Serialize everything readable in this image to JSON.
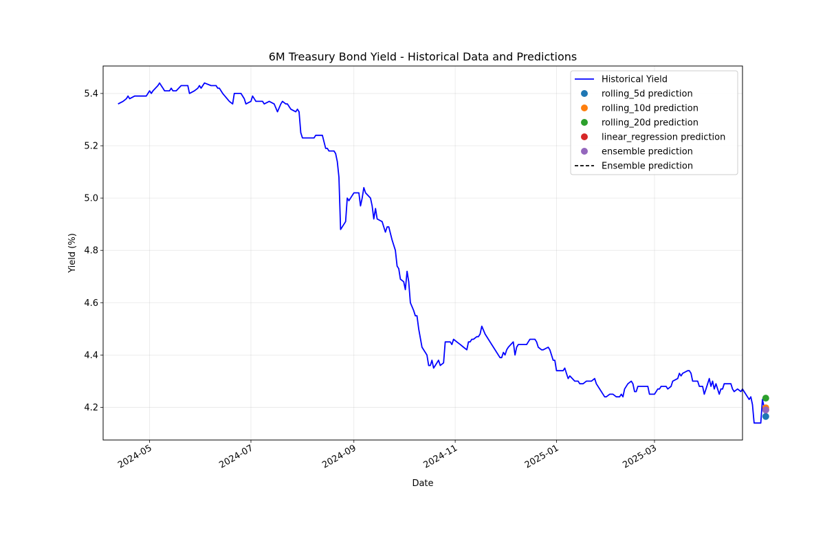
{
  "chart_data": {
    "type": "line",
    "title": "6M Treasury Bond Yield - Historical Data and Predictions",
    "xlabel": "Date",
    "ylabel": "Yield (%)",
    "x_ticks": [
      "2024-05",
      "2024-07",
      "2024-09",
      "2024-11",
      "2025-01",
      "2025-03"
    ],
    "y_ticks": [
      "4.2",
      "4.4",
      "4.6",
      "4.8",
      "5.0",
      "5.2",
      "5.4"
    ],
    "xlim": [
      "2024-04-03",
      "2025-04-23"
    ],
    "ylim": [
      4.075,
      5.505
    ],
    "grid": true,
    "legend_position": "upper right",
    "series": [
      {
        "name": "Historical Yield",
        "color": "#0000ff",
        "points": [
          [
            "2024-04-12",
            5.36
          ],
          [
            "2024-04-15",
            5.37
          ],
          [
            "2024-04-17",
            5.38
          ],
          [
            "2024-04-18",
            5.39
          ],
          [
            "2024-04-19",
            5.38
          ],
          [
            "2024-04-22",
            5.39
          ],
          [
            "2024-04-25",
            5.39
          ],
          [
            "2024-04-29",
            5.39
          ],
          [
            "2024-04-30",
            5.4
          ],
          [
            "2024-05-01",
            5.41
          ],
          [
            "2024-05-02",
            5.4
          ],
          [
            "2024-05-03",
            5.41
          ],
          [
            "2024-05-06",
            5.43
          ],
          [
            "2024-05-07",
            5.44
          ],
          [
            "2024-05-08",
            5.43
          ],
          [
            "2024-05-09",
            5.42
          ],
          [
            "2024-05-10",
            5.41
          ],
          [
            "2024-05-13",
            5.41
          ],
          [
            "2024-05-14",
            5.42
          ],
          [
            "2024-05-15",
            5.41
          ],
          [
            "2024-05-16",
            5.41
          ],
          [
            "2024-05-17",
            5.41
          ],
          [
            "2024-05-20",
            5.43
          ],
          [
            "2024-05-24",
            5.43
          ],
          [
            "2024-05-25",
            5.4
          ],
          [
            "2024-05-28",
            5.41
          ],
          [
            "2024-05-30",
            5.42
          ],
          [
            "2024-05-31",
            5.43
          ],
          [
            "2024-06-01",
            5.42
          ],
          [
            "2024-06-03",
            5.44
          ],
          [
            "2024-06-07",
            5.43
          ],
          [
            "2024-06-10",
            5.43
          ],
          [
            "2024-06-11",
            5.42
          ],
          [
            "2024-06-12",
            5.42
          ],
          [
            "2024-06-14",
            5.4
          ],
          [
            "2024-06-18",
            5.37
          ],
          [
            "2024-06-20",
            5.36
          ],
          [
            "2024-06-21",
            5.4
          ],
          [
            "2024-06-25",
            5.4
          ],
          [
            "2024-06-27",
            5.38
          ],
          [
            "2024-06-28",
            5.36
          ],
          [
            "2024-07-01",
            5.37
          ],
          [
            "2024-07-02",
            5.39
          ],
          [
            "2024-07-04",
            5.37
          ],
          [
            "2024-07-08",
            5.37
          ],
          [
            "2024-07-09",
            5.36
          ],
          [
            "2024-07-12",
            5.37
          ],
          [
            "2024-07-15",
            5.36
          ],
          [
            "2024-07-17",
            5.33
          ],
          [
            "2024-07-19",
            5.36
          ],
          [
            "2024-07-20",
            5.37
          ],
          [
            "2024-07-22",
            5.36
          ],
          [
            "2024-07-23",
            5.36
          ],
          [
            "2024-07-25",
            5.34
          ],
          [
            "2024-07-28",
            5.33
          ],
          [
            "2024-07-29",
            5.34
          ],
          [
            "2024-07-30",
            5.33
          ],
          [
            "2024-07-31",
            5.25
          ],
          [
            "2024-08-01",
            5.23
          ],
          [
            "2024-08-02",
            5.23
          ],
          [
            "2024-08-05",
            5.23
          ],
          [
            "2024-08-08",
            5.23
          ],
          [
            "2024-08-09",
            5.24
          ],
          [
            "2024-08-13",
            5.24
          ],
          [
            "2024-08-15",
            5.19
          ],
          [
            "2024-08-16",
            5.19
          ],
          [
            "2024-08-17",
            5.18
          ],
          [
            "2024-08-20",
            5.18
          ],
          [
            "2024-08-21",
            5.17
          ],
          [
            "2024-08-22",
            5.14
          ],
          [
            "2024-08-23",
            5.08
          ],
          [
            "2024-08-24",
            4.88
          ],
          [
            "2024-08-27",
            4.91
          ],
          [
            "2024-08-28",
            5.0
          ],
          [
            "2024-08-29",
            4.99
          ],
          [
            "2024-09-01",
            5.02
          ],
          [
            "2024-09-04",
            5.02
          ],
          [
            "2024-09-05",
            4.97
          ],
          [
            "2024-09-06",
            5.0
          ],
          [
            "2024-09-07",
            5.04
          ],
          [
            "2024-09-08",
            5.02
          ],
          [
            "2024-09-11",
            5.0
          ],
          [
            "2024-09-12",
            4.97
          ],
          [
            "2024-09-13",
            4.92
          ],
          [
            "2024-09-14",
            4.96
          ],
          [
            "2024-09-15",
            4.92
          ],
          [
            "2024-09-18",
            4.91
          ],
          [
            "2024-09-20",
            4.87
          ],
          [
            "2024-09-21",
            4.89
          ],
          [
            "2024-09-22",
            4.89
          ],
          [
            "2024-09-24",
            4.84
          ],
          [
            "2024-09-26",
            4.8
          ],
          [
            "2024-09-27",
            4.74
          ],
          [
            "2024-09-28",
            4.73
          ],
          [
            "2024-09-29",
            4.69
          ],
          [
            "2024-10-01",
            4.68
          ],
          [
            "2024-10-02",
            4.65
          ],
          [
            "2024-10-03",
            4.72
          ],
          [
            "2024-10-04",
            4.68
          ],
          [
            "2024-10-05",
            4.6
          ],
          [
            "2024-10-07",
            4.57
          ],
          [
            "2024-10-08",
            4.55
          ],
          [
            "2024-10-09",
            4.55
          ],
          [
            "2024-10-10",
            4.5
          ],
          [
            "2024-10-12",
            4.43
          ],
          [
            "2024-10-15",
            4.4
          ],
          [
            "2024-10-16",
            4.36
          ],
          [
            "2024-10-17",
            4.36
          ],
          [
            "2024-10-18",
            4.38
          ],
          [
            "2024-10-19",
            4.35
          ],
          [
            "2024-10-22",
            4.38
          ],
          [
            "2024-10-23",
            4.36
          ],
          [
            "2024-10-25",
            4.37
          ],
          [
            "2024-10-26",
            4.45
          ],
          [
            "2024-10-27",
            4.45
          ],
          [
            "2024-10-29",
            4.45
          ],
          [
            "2024-10-30",
            4.44
          ],
          [
            "2024-10-31",
            4.46
          ],
          [
            "2024-11-02",
            4.45
          ],
          [
            "2024-11-04",
            4.44
          ],
          [
            "2024-11-06",
            4.43
          ],
          [
            "2024-11-08",
            4.42
          ],
          [
            "2024-11-09",
            4.45
          ],
          [
            "2024-11-10",
            4.45
          ],
          [
            "2024-11-11",
            4.46
          ],
          [
            "2024-11-12",
            4.46
          ],
          [
            "2024-11-14",
            4.47
          ],
          [
            "2024-11-15",
            4.47
          ],
          [
            "2024-11-16",
            4.48
          ],
          [
            "2024-11-17",
            4.51
          ],
          [
            "2024-11-19",
            4.48
          ],
          [
            "2024-11-21",
            4.46
          ],
          [
            "2024-11-23",
            4.44
          ],
          [
            "2024-11-26",
            4.41
          ],
          [
            "2024-11-28",
            4.39
          ],
          [
            "2024-11-29",
            4.39
          ],
          [
            "2024-11-30",
            4.41
          ],
          [
            "2024-12-01",
            4.4
          ],
          [
            "2024-12-02",
            4.42
          ],
          [
            "2024-12-03",
            4.43
          ],
          [
            "2024-12-06",
            4.45
          ],
          [
            "2024-12-07",
            4.4
          ],
          [
            "2024-12-08",
            4.43
          ],
          [
            "2024-12-09",
            4.44
          ],
          [
            "2024-12-14",
            4.44
          ],
          [
            "2024-12-15",
            4.45
          ],
          [
            "2024-12-16",
            4.46
          ],
          [
            "2024-12-19",
            4.46
          ],
          [
            "2024-12-20",
            4.45
          ],
          [
            "2024-12-21",
            4.43
          ],
          [
            "2024-12-23",
            4.42
          ],
          [
            "2024-12-24",
            4.42
          ],
          [
            "2024-12-27",
            4.43
          ],
          [
            "2024-12-28",
            4.42
          ],
          [
            "2024-12-29",
            4.4
          ],
          [
            "2024-12-30",
            4.38
          ],
          [
            "2024-12-31",
            4.38
          ],
          [
            "2025-01-01",
            4.34
          ],
          [
            "2025-01-05",
            4.34
          ],
          [
            "2025-01-06",
            4.35
          ],
          [
            "2025-01-07",
            4.33
          ],
          [
            "2025-01-08",
            4.31
          ],
          [
            "2025-01-09",
            4.32
          ],
          [
            "2025-01-12",
            4.3
          ],
          [
            "2025-01-14",
            4.3
          ],
          [
            "2025-01-15",
            4.29
          ],
          [
            "2025-01-17",
            4.29
          ],
          [
            "2025-01-19",
            4.3
          ],
          [
            "2025-01-22",
            4.3
          ],
          [
            "2025-01-24",
            4.31
          ],
          [
            "2025-01-25",
            4.29
          ],
          [
            "2025-01-28",
            4.26
          ],
          [
            "2025-01-30",
            4.24
          ],
          [
            "2025-01-31",
            4.24
          ],
          [
            "2025-02-02",
            4.25
          ],
          [
            "2025-02-04",
            4.25
          ],
          [
            "2025-02-06",
            4.24
          ],
          [
            "2025-02-08",
            4.24
          ],
          [
            "2025-02-09",
            4.25
          ],
          [
            "2025-02-10",
            4.24
          ],
          [
            "2025-02-11",
            4.27
          ],
          [
            "2025-02-13",
            4.29
          ],
          [
            "2025-02-15",
            4.3
          ],
          [
            "2025-02-16",
            4.29
          ],
          [
            "2025-02-17",
            4.26
          ],
          [
            "2025-02-18",
            4.26
          ],
          [
            "2025-02-19",
            4.28
          ],
          [
            "2025-02-21",
            4.28
          ],
          [
            "2025-02-25",
            4.28
          ],
          [
            "2025-02-26",
            4.25
          ],
          [
            "2025-03-01",
            4.25
          ],
          [
            "2025-03-03",
            4.27
          ],
          [
            "2025-03-04",
            4.27
          ],
          [
            "2025-03-05",
            4.28
          ],
          [
            "2025-03-08",
            4.28
          ],
          [
            "2025-03-09",
            4.27
          ],
          [
            "2025-03-11",
            4.28
          ],
          [
            "2025-03-12",
            4.3
          ],
          [
            "2025-03-15",
            4.31
          ],
          [
            "2025-03-16",
            4.33
          ],
          [
            "2025-03-17",
            4.32
          ],
          [
            "2025-03-18",
            4.33
          ],
          [
            "2025-03-21",
            4.34
          ],
          [
            "2025-03-22",
            4.34
          ],
          [
            "2025-03-23",
            4.33
          ],
          [
            "2025-03-24",
            4.3
          ],
          [
            "2025-03-27",
            4.3
          ],
          [
            "2025-03-28",
            4.28
          ],
          [
            "2025-03-30",
            4.28
          ],
          [
            "2025-03-31",
            4.25
          ],
          [
            "2025-04-01",
            4.27
          ],
          [
            "2025-04-02",
            4.29
          ],
          [
            "2025-04-03",
            4.31
          ],
          [
            "2025-04-04",
            4.28
          ],
          [
            "2025-04-05",
            4.3
          ],
          [
            "2025-04-06",
            4.27
          ],
          [
            "2025-04-07",
            4.29
          ],
          [
            "2025-04-08",
            4.27
          ],
          [
            "2025-04-09",
            4.25
          ],
          [
            "2025-04-10",
            4.27
          ],
          [
            "2025-04-11",
            4.27
          ],
          [
            "2025-04-12",
            4.29
          ],
          [
            "2025-04-16",
            4.29
          ],
          [
            "2025-04-17",
            4.27
          ],
          [
            "2025-04-18",
            4.26
          ],
          [
            "2025-04-20",
            4.27
          ],
          [
            "2025-04-22",
            4.26
          ],
          [
            "2025-04-23",
            4.27
          ],
          [
            "2025-04-25",
            4.25
          ],
          [
            "2025-04-26",
            4.24
          ],
          [
            "2025-04-27",
            4.23
          ],
          [
            "2025-04-28",
            4.24
          ],
          [
            "2025-04-29",
            4.21
          ],
          [
            "2025-04-30",
            4.14
          ],
          [
            "2025-05-04",
            4.14
          ],
          [
            "2025-05-05",
            4.23
          ],
          [
            "2025-05-06",
            4.2
          ]
        ]
      }
    ],
    "predictions": [
      {
        "name": "rolling_5d prediction",
        "color": "#1f77b4",
        "date": "2025-05-07",
        "value": 4.165
      },
      {
        "name": "rolling_10d prediction",
        "color": "#ff7f0e",
        "date": "2025-05-07",
        "value": 4.198
      },
      {
        "name": "rolling_20d prediction",
        "color": "#2ca02c",
        "date": "2025-05-07",
        "value": 4.235
      },
      {
        "name": "linear_regression prediction",
        "color": "#d62728",
        "date": "2025-05-07",
        "value": 4.19
      },
      {
        "name": "ensemble prediction",
        "color": "#9467bd",
        "date": "2025-05-07",
        "value": 4.19
      }
    ],
    "ensemble_line": {
      "name": "Ensemble prediction",
      "color": "#000000",
      "style": "dashed",
      "points": [
        [
          "2025-05-06",
          4.2
        ],
        [
          "2025-05-07",
          4.19
        ]
      ]
    },
    "legend_entries": [
      "Historical Yield",
      "rolling_5d prediction",
      "rolling_10d prediction",
      "rolling_20d prediction",
      "linear_regression prediction",
      "ensemble prediction",
      "Ensemble prediction"
    ]
  }
}
